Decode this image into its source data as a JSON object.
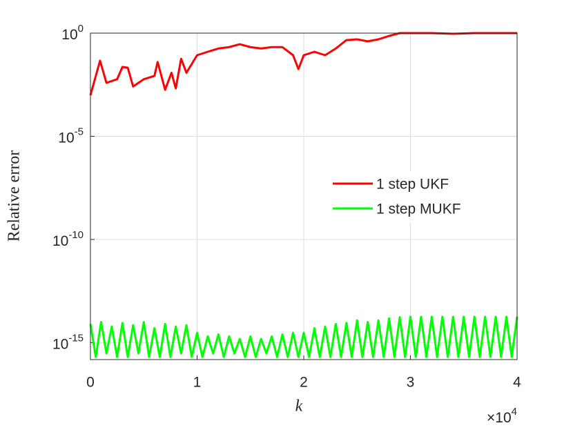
{
  "chart_data": {
    "type": "line",
    "ylabel": "Relative error",
    "xlabel": "k",
    "x_exponent_label": "×10^4",
    "xlim": [
      0,
      40000
    ],
    "xticks": [
      0,
      {
        "value": 10000,
        "label": "1"
      },
      {
        "value": 20000,
        "label": "2"
      },
      {
        "value": 30000,
        "label": "3"
      },
      {
        "value": 40000,
        "label": "4"
      }
    ],
    "ylim": [
      1.5e-16,
      1
    ],
    "log_y": true,
    "grid": true,
    "legend_position": "right",
    "yticks": [
      {
        "value": 1e-15,
        "label": "10^-15"
      },
      {
        "value": 1e-10,
        "label": "10^-10"
      },
      {
        "value": 1e-05,
        "label": "10^-5"
      },
      {
        "value": 1,
        "label": "10^0"
      }
    ],
    "series": [
      {
        "name": "1 step UKF",
        "color": "#ff0000",
        "x": [
          0,
          900,
          1500,
          2500,
          3000,
          3500,
          4000,
          5000,
          6000,
          6300,
          7000,
          7600,
          8000,
          8500,
          9000,
          10000,
          11000,
          12000,
          13000,
          14000,
          15000,
          16000,
          17000,
          18000,
          19000,
          19500,
          20000,
          21000,
          22000,
          23000,
          24000,
          25000,
          26000,
          27000,
          28000,
          29000,
          30000,
          32000,
          34000,
          36000,
          38000,
          40000
        ],
        "values": [
          0.00098,
          0.046,
          0.0039,
          0.0058,
          0.023,
          0.021,
          0.0026,
          0.0058,
          0.0085,
          0.04,
          0.0018,
          0.012,
          0.0021,
          0.057,
          0.012,
          0.085,
          0.125,
          0.18,
          0.21,
          0.29,
          0.21,
          0.18,
          0.21,
          0.21,
          0.085,
          0.018,
          0.085,
          0.125,
          0.085,
          0.18,
          0.46,
          0.5,
          0.4,
          0.5,
          0.73,
          1,
          1,
          1,
          0.93,
          1,
          1,
          1
        ]
      },
      {
        "name": "1 step MUKF",
        "color": "#00ff00",
        "x": [
          0,
          500,
          1000,
          1500,
          2000,
          2500,
          3000,
          3500,
          4000,
          4500,
          5000,
          5500,
          6000,
          6500,
          7000,
          7500,
          8000,
          8500,
          9000,
          9500,
          10000,
          10500,
          11000,
          11500,
          12000,
          12500,
          13000,
          13500,
          14000,
          14500,
          15000,
          15500,
          16000,
          16500,
          17000,
          17500,
          18000,
          18500,
          19000,
          19500,
          20000,
          20500,
          21000,
          21500,
          22000,
          22500,
          23000,
          23500,
          24000,
          24500,
          25000,
          25500,
          26000,
          26500,
          27000,
          27500,
          28000,
          28500,
          29000,
          29500,
          30000,
          30500,
          31000,
          31500,
          32000,
          32500,
          33000,
          33500,
          34000,
          34500,
          35000,
          35500,
          36000,
          36500,
          37000,
          37500,
          38000,
          38500,
          39000,
          39500,
          40000
        ],
        "values": [
          8e-15,
          2e-16,
          1e-14,
          3e-16,
          6e-15,
          2e-16,
          9e-15,
          2e-16,
          7e-15,
          3e-16,
          1e-14,
          2e-16,
          5e-15,
          2e-16,
          8e-15,
          2e-16,
          6e-15,
          3e-16,
          7e-15,
          2e-16,
          3e-15,
          2e-16,
          2e-15,
          3e-16,
          2.5e-15,
          2e-16,
          2e-15,
          3e-16,
          1.5e-15,
          2e-16,
          2e-15,
          2e-16,
          1.5e-15,
          3e-16,
          2e-15,
          2e-16,
          2.5e-15,
          2e-16,
          3e-15,
          2e-16,
          3e-15,
          2e-16,
          5e-15,
          2e-16,
          6e-15,
          2e-16,
          8e-15,
          2e-16,
          9e-15,
          2e-16,
          1.2e-14,
          2e-16,
          1e-14,
          2e-16,
          1.2e-14,
          2e-16,
          1.5e-14,
          2e-16,
          1.7e-14,
          2e-16,
          1.8e-14,
          2e-16,
          1.8e-14,
          2e-16,
          1.8e-14,
          2e-16,
          1.8e-14,
          2e-16,
          1.8e-14,
          2e-16,
          1.8e-14,
          2e-16,
          1.8e-14,
          2e-16,
          1.8e-14,
          2e-16,
          1.8e-14,
          2e-16,
          1.8e-14,
          2e-16,
          1.8e-14
        ]
      }
    ]
  }
}
